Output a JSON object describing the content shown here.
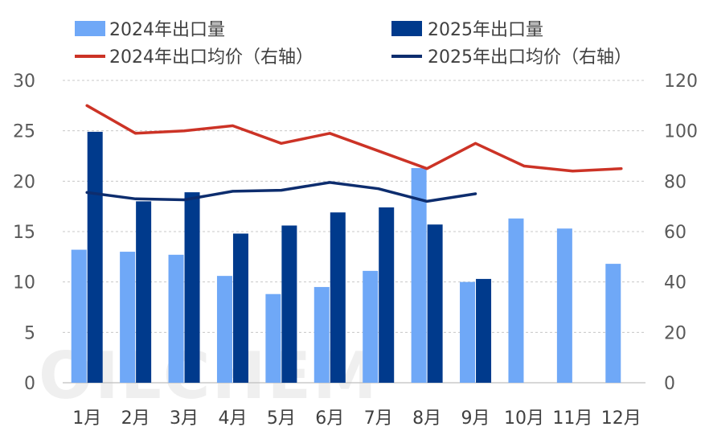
{
  "watermark": "OILCHEM",
  "colors": {
    "vol2024": "#6fa8f7",
    "vol2025": "#003a8c",
    "price2024": "#cc3326",
    "price2025": "#0d2d6e",
    "grid": "#c8c8c8"
  },
  "chart_data": {
    "type": "bar",
    "categories": [
      "1月",
      "2月",
      "3月",
      "4月",
      "5月",
      "6月",
      "7月",
      "8月",
      "9月",
      "10月",
      "11月",
      "12月"
    ],
    "series": [
      {
        "name": "2024年出口量",
        "kind": "bar",
        "axis": "left",
        "values": [
          13.2,
          13.0,
          12.7,
          10.6,
          8.8,
          9.5,
          11.1,
          21.3,
          10.0,
          16.3,
          15.3,
          11.8
        ]
      },
      {
        "name": "2025年出口量",
        "kind": "bar",
        "axis": "left",
        "values": [
          24.9,
          18.0,
          18.9,
          14.8,
          15.6,
          16.9,
          17.4,
          15.7,
          10.3,
          null,
          null,
          null
        ]
      },
      {
        "name": "2024年出口均价（右轴）",
        "kind": "line",
        "axis": "right",
        "values": [
          110,
          99,
          100,
          102,
          95,
          99,
          92,
          85,
          95,
          86,
          84,
          85
        ]
      },
      {
        "name": "2025年出口均价（右轴）",
        "kind": "line",
        "axis": "right",
        "values": [
          75.5,
          73,
          72.6,
          76,
          76.4,
          79.5,
          77,
          72,
          75,
          null,
          null,
          null
        ]
      }
    ],
    "y_left": {
      "min": 0,
      "max": 30,
      "ticks": [
        0,
        5,
        10,
        15,
        20,
        25,
        30
      ]
    },
    "y_right": {
      "min": 0,
      "max": 120,
      "ticks": [
        0,
        20,
        40,
        60,
        80,
        100,
        120
      ]
    },
    "grid": true,
    "legend_position": "top"
  }
}
